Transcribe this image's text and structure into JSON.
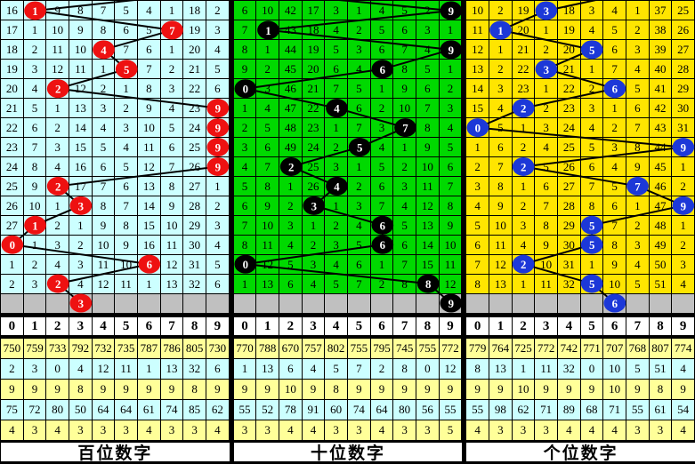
{
  "columns": [
    "0",
    "1",
    "2",
    "3",
    "4",
    "5",
    "6",
    "7",
    "8",
    "9"
  ],
  "stat_row_colors": [
    "#FFFF99",
    "#CCFFFF",
    "#FFFF99",
    "#CCFFFF",
    "#FFFF99"
  ],
  "colors": {
    "grid_line": "#000000",
    "gray_row": "#C0C0C0",
    "trend_line": "#000000",
    "hundreds_bg": "#CCFFFF",
    "tens_bg": "#00D900",
    "units_bg": "#FFE500",
    "hundreds_ball": "#EE1111",
    "tens_ball": "#000000",
    "units_ball": "#1C38D8"
  },
  "panels": [
    {
      "id": "hundreds",
      "title": "百位数字",
      "cell_bg": "#CCFFFF",
      "ball_color": "#EE1111",
      "prev_ball_col": 9,
      "next_ball_col": 3,
      "rows": [
        {
          "ball_col": 1,
          "cells": [
            "16",
            "1",
            "9",
            "8",
            "7",
            "5",
            "4",
            "1",
            "18",
            "2"
          ]
        },
        {
          "ball_col": 7,
          "cells": [
            "17",
            "1",
            "10",
            "9",
            "8",
            "6",
            "5",
            "7",
            "19",
            "3"
          ]
        },
        {
          "ball_col": 4,
          "cells": [
            "18",
            "2",
            "11",
            "10",
            "4",
            "7",
            "6",
            "1",
            "20",
            "4"
          ]
        },
        {
          "ball_col": 5,
          "cells": [
            "19",
            "3",
            "12",
            "11",
            "1",
            "5",
            "7",
            "2",
            "21",
            "5"
          ]
        },
        {
          "ball_col": 2,
          "cells": [
            "20",
            "4",
            "2",
            "12",
            "2",
            "1",
            "8",
            "3",
            "22",
            "6"
          ]
        },
        {
          "ball_col": 9,
          "cells": [
            "21",
            "5",
            "1",
            "13",
            "3",
            "2",
            "9",
            "4",
            "23",
            "9"
          ]
        },
        {
          "ball_col": 9,
          "cells": [
            "22",
            "6",
            "2",
            "14",
            "4",
            "3",
            "10",
            "5",
            "24",
            "9"
          ]
        },
        {
          "ball_col": 9,
          "cells": [
            "23",
            "7",
            "3",
            "15",
            "5",
            "4",
            "11",
            "6",
            "25",
            "9"
          ]
        },
        {
          "ball_col": 9,
          "cells": [
            "24",
            "8",
            "4",
            "16",
            "6",
            "5",
            "12",
            "7",
            "26",
            "9"
          ]
        },
        {
          "ball_col": 2,
          "cells": [
            "25",
            "9",
            "2",
            "17",
            "7",
            "6",
            "13",
            "8",
            "27",
            "1"
          ]
        },
        {
          "ball_col": 3,
          "cells": [
            "26",
            "10",
            "1",
            "3",
            "8",
            "7",
            "14",
            "9",
            "28",
            "2"
          ]
        },
        {
          "ball_col": 1,
          "cells": [
            "27",
            "1",
            "2",
            "1",
            "9",
            "8",
            "15",
            "10",
            "29",
            "3"
          ]
        },
        {
          "ball_col": 0,
          "cells": [
            "0",
            "1",
            "3",
            "2",
            "10",
            "9",
            "16",
            "11",
            "30",
            "4"
          ]
        },
        {
          "ball_col": 6,
          "cells": [
            "1",
            "2",
            "4",
            "3",
            "11",
            "10",
            "6",
            "12",
            "31",
            "5"
          ]
        },
        {
          "ball_col": 2,
          "cells": [
            "2",
            "3",
            "2",
            "4",
            "12",
            "11",
            "1",
            "13",
            "32",
            "6"
          ]
        }
      ],
      "stats": [
        [
          "750",
          "759",
          "733",
          "792",
          "732",
          "735",
          "787",
          "786",
          "805",
          "730"
        ],
        [
          "2",
          "3",
          "0",
          "4",
          "12",
          "11",
          "1",
          "13",
          "32",
          "6"
        ],
        [
          "9",
          "9",
          "9",
          "8",
          "9",
          "9",
          "9",
          "9",
          "8",
          "9"
        ],
        [
          "75",
          "72",
          "80",
          "50",
          "64",
          "64",
          "61",
          "74",
          "85",
          "62"
        ],
        [
          "4",
          "3",
          "4",
          "3",
          "3",
          "3",
          "4",
          "3",
          "3",
          "4"
        ]
      ]
    },
    {
      "id": "tens",
      "title": "十位数字",
      "cell_bg": "#00D900",
      "ball_color": "#000000",
      "prev_ball_col": 0,
      "next_ball_col": 9,
      "rows": [
        {
          "ball_col": 9,
          "cells": [
            "6",
            "10",
            "42",
            "17",
            "3",
            "1",
            "4",
            "5",
            "2",
            "9"
          ]
        },
        {
          "ball_col": 1,
          "cells": [
            "7",
            "1",
            "43",
            "18",
            "4",
            "2",
            "5",
            "6",
            "3",
            "1"
          ]
        },
        {
          "ball_col": 9,
          "cells": [
            "8",
            "1",
            "44",
            "19",
            "5",
            "3",
            "6",
            "7",
            "4",
            "9"
          ]
        },
        {
          "ball_col": 6,
          "cells": [
            "9",
            "2",
            "45",
            "20",
            "6",
            "4",
            "6",
            "8",
            "5",
            "1"
          ]
        },
        {
          "ball_col": 0,
          "cells": [
            "0",
            "3",
            "46",
            "21",
            "7",
            "5",
            "1",
            "9",
            "6",
            "2"
          ]
        },
        {
          "ball_col": 4,
          "cells": [
            "1",
            "4",
            "47",
            "22",
            "4",
            "6",
            "2",
            "10",
            "7",
            "3"
          ]
        },
        {
          "ball_col": 7,
          "cells": [
            "2",
            "5",
            "48",
            "23",
            "1",
            "7",
            "3",
            "7",
            "8",
            "4"
          ]
        },
        {
          "ball_col": 5,
          "cells": [
            "3",
            "6",
            "49",
            "24",
            "2",
            "5",
            "4",
            "1",
            "9",
            "5"
          ]
        },
        {
          "ball_col": 2,
          "cells": [
            "4",
            "7",
            "2",
            "25",
            "3",
            "1",
            "5",
            "2",
            "10",
            "6"
          ]
        },
        {
          "ball_col": 4,
          "cells": [
            "5",
            "8",
            "1",
            "26",
            "4",
            "2",
            "6",
            "3",
            "11",
            "7"
          ]
        },
        {
          "ball_col": 3,
          "cells": [
            "6",
            "9",
            "2",
            "3",
            "1",
            "3",
            "7",
            "4",
            "12",
            "8"
          ]
        },
        {
          "ball_col": 6,
          "cells": [
            "7",
            "10",
            "3",
            "1",
            "2",
            "4",
            "6",
            "5",
            "13",
            "9"
          ]
        },
        {
          "ball_col": 6,
          "cells": [
            "8",
            "11",
            "4",
            "2",
            "3",
            "5",
            "6",
            "6",
            "14",
            "10"
          ]
        },
        {
          "ball_col": 0,
          "cells": [
            "0",
            "12",
            "5",
            "3",
            "4",
            "6",
            "1",
            "7",
            "15",
            "11"
          ]
        },
        {
          "ball_col": 8,
          "cells": [
            "1",
            "13",
            "6",
            "4",
            "5",
            "7",
            "2",
            "8",
            "8",
            "12"
          ]
        }
      ],
      "stats": [
        [
          "770",
          "788",
          "670",
          "757",
          "802",
          "755",
          "795",
          "745",
          "755",
          "772"
        ],
        [
          "1",
          "13",
          "6",
          "4",
          "5",
          "7",
          "2",
          "8",
          "0",
          "12"
        ],
        [
          "9",
          "9",
          "10",
          "9",
          "8",
          "9",
          "9",
          "9",
          "9",
          "9"
        ],
        [
          "55",
          "52",
          "78",
          "91",
          "60",
          "74",
          "64",
          "80",
          "56",
          "55"
        ],
        [
          "3",
          "3",
          "4",
          "4",
          "3",
          "3",
          "4",
          "3",
          "3",
          "5"
        ]
      ]
    },
    {
      "id": "units",
      "title": "个位数字",
      "cell_bg": "#FFE500",
      "ball_color": "#1C38D8",
      "prev_ball_col": 7,
      "next_ball_col": 6,
      "rows": [
        {
          "ball_col": 3,
          "cells": [
            "10",
            "2",
            "19",
            "3",
            "18",
            "3",
            "4",
            "1",
            "37",
            "25"
          ]
        },
        {
          "ball_col": 1,
          "cells": [
            "11",
            "1",
            "20",
            "1",
            "19",
            "4",
            "5",
            "2",
            "38",
            "26"
          ]
        },
        {
          "ball_col": 5,
          "cells": [
            "12",
            "1",
            "21",
            "2",
            "20",
            "5",
            "6",
            "3",
            "39",
            "27"
          ]
        },
        {
          "ball_col": 3,
          "cells": [
            "13",
            "2",
            "22",
            "3",
            "21",
            "1",
            "7",
            "4",
            "40",
            "28"
          ]
        },
        {
          "ball_col": 6,
          "cells": [
            "14",
            "3",
            "23",
            "1",
            "22",
            "2",
            "6",
            "5",
            "41",
            "29"
          ]
        },
        {
          "ball_col": 2,
          "cells": [
            "15",
            "4",
            "2",
            "2",
            "23",
            "3",
            "1",
            "6",
            "42",
            "30"
          ]
        },
        {
          "ball_col": 0,
          "cells": [
            "0",
            "5",
            "1",
            "3",
            "24",
            "4",
            "2",
            "7",
            "43",
            "31"
          ]
        },
        {
          "ball_col": 9,
          "cells": [
            "1",
            "6",
            "2",
            "4",
            "25",
            "5",
            "3",
            "8",
            "44",
            "9"
          ]
        },
        {
          "ball_col": 2,
          "cells": [
            "2",
            "7",
            "2",
            "5",
            "26",
            "6",
            "4",
            "9",
            "45",
            "1"
          ]
        },
        {
          "ball_col": 7,
          "cells": [
            "3",
            "8",
            "1",
            "6",
            "27",
            "7",
            "5",
            "7",
            "46",
            "2"
          ]
        },
        {
          "ball_col": 9,
          "cells": [
            "4",
            "9",
            "2",
            "7",
            "28",
            "8",
            "6",
            "1",
            "47",
            "9"
          ]
        },
        {
          "ball_col": 5,
          "cells": [
            "5",
            "10",
            "3",
            "8",
            "29",
            "5",
            "7",
            "2",
            "48",
            "1"
          ]
        },
        {
          "ball_col": 5,
          "cells": [
            "6",
            "11",
            "4",
            "9",
            "30",
            "5",
            "8",
            "3",
            "49",
            "2"
          ]
        },
        {
          "ball_col": 2,
          "cells": [
            "7",
            "12",
            "2",
            "10",
            "31",
            "1",
            "9",
            "4",
            "50",
            "3"
          ]
        },
        {
          "ball_col": 5,
          "cells": [
            "8",
            "13",
            "1",
            "11",
            "32",
            "5",
            "10",
            "5",
            "51",
            "4"
          ]
        }
      ],
      "stats": [
        [
          "779",
          "764",
          "725",
          "772",
          "742",
          "771",
          "707",
          "768",
          "807",
          "774"
        ],
        [
          "8",
          "13",
          "1",
          "11",
          "32",
          "0",
          "10",
          "5",
          "51",
          "4"
        ],
        [
          "9",
          "9",
          "10",
          "9",
          "9",
          "9",
          "10",
          "9",
          "8",
          "9"
        ],
        [
          "55",
          "98",
          "62",
          "71",
          "89",
          "68",
          "71",
          "55",
          "61",
          "54"
        ],
        [
          "4",
          "3",
          "3",
          "3",
          "4",
          "4",
          "4",
          "3",
          "3",
          "4"
        ]
      ]
    }
  ],
  "chart_data": {
    "type": "table",
    "description": "Lottery digit trend chart: 3 panels (hundreds/tens/units), 10 digit columns 0-9, 15 draw rows of miss counts; circled cells mark the drawn digit, gray row marks the next-draw prediction ball",
    "columns": [
      "0",
      "1",
      "2",
      "3",
      "4",
      "5",
      "6",
      "7",
      "8",
      "9"
    ],
    "drawn_sequences": {
      "百位数字": [
        1,
        7,
        4,
        5,
        2,
        9,
        9,
        9,
        9,
        2,
        3,
        1,
        0,
        6,
        2
      ],
      "十位数字": [
        9,
        1,
        9,
        6,
        0,
        4,
        7,
        5,
        2,
        4,
        3,
        6,
        6,
        0,
        8
      ],
      "个位数字": [
        3,
        1,
        5,
        3,
        6,
        2,
        0,
        9,
        2,
        7,
        9,
        5,
        5,
        2,
        5
      ]
    },
    "next_marks": {
      "百位数字": 3,
      "十位数字": 9,
      "个位数字": 6
    },
    "legend_position": "none",
    "grid": true
  }
}
